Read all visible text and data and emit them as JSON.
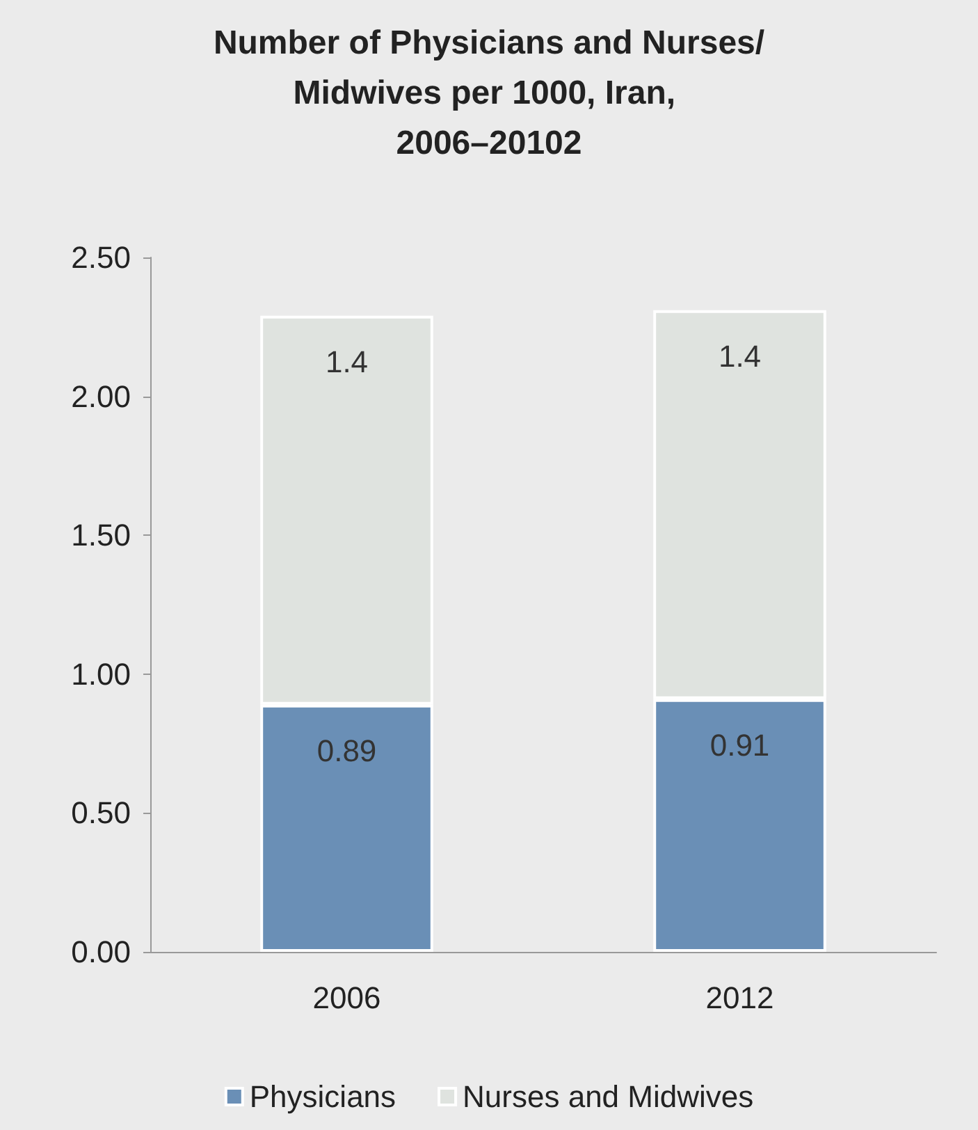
{
  "chart_data": {
    "type": "bar",
    "title": "Number of Physicians and Nurses/Midwives per 1000, Iran, 2006–20102",
    "categories": [
      "2006",
      "2012"
    ],
    "stacked": true,
    "data_labels": true,
    "grid": false,
    "legend": "bottom",
    "ylim": [
      0,
      2.5
    ],
    "yticks": [
      {
        "value": 0,
        "label": "0.00"
      },
      {
        "value": 0.5,
        "label": "0.50"
      },
      {
        "value": 1,
        "label": "1.00"
      },
      {
        "value": 1.5,
        "label": "1.50"
      },
      {
        "value": 2,
        "label": "2.00"
      },
      {
        "value": 2.5,
        "label": "2.50"
      }
    ],
    "series": [
      {
        "name": "Physicians",
        "color": "#6a8fb6",
        "values": [
          0.89,
          0.91
        ]
      },
      {
        "name": "Nurses and Midwives",
        "color": "#dfe3df",
        "values": [
          1.4,
          1.4
        ]
      }
    ]
  }
}
